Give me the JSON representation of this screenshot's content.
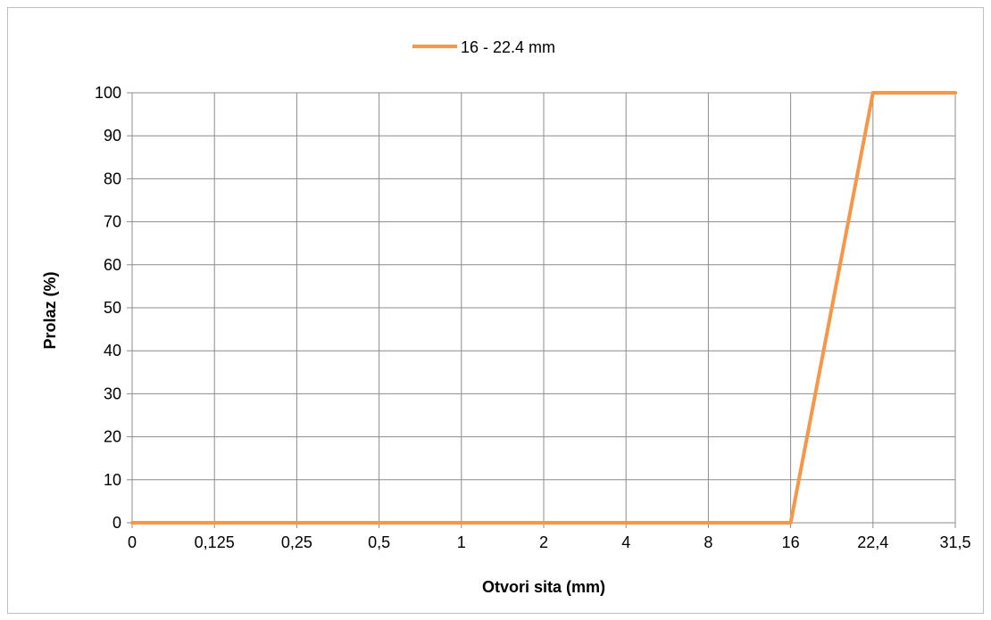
{
  "chart_data": {
    "type": "line",
    "title": "",
    "xlabel": "Otvori sita (mm)",
    "ylabel": "Prolaz (%)",
    "categories": [
      "0",
      "0,125",
      "0,25",
      "0,5",
      "1",
      "2",
      "4",
      "8",
      "16",
      "22,4",
      "31,5"
    ],
    "series": [
      {
        "name": "16 - 22.4 mm",
        "color": "#f79646",
        "values": [
          0,
          0,
          0,
          0,
          0,
          0,
          0,
          0,
          0,
          100,
          100
        ]
      }
    ],
    "ylim": [
      0,
      100
    ],
    "yticks": [
      0,
      10,
      20,
      30,
      40,
      50,
      60,
      70,
      80,
      90,
      100
    ],
    "grid": true,
    "legend_position": "top-center",
    "gridline_color": "#8c8c8c"
  }
}
